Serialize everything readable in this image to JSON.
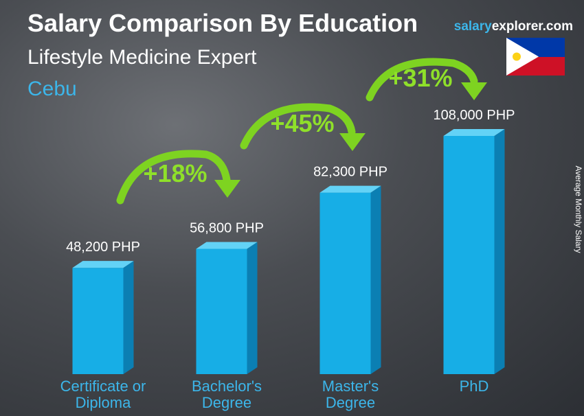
{
  "header": {
    "title": "Salary Comparison By Education",
    "subtitle": "Lifestyle Medicine Expert",
    "location": "Cebu",
    "brand_salary": "salary",
    "brand_explorer": "explorer.com"
  },
  "chart_data": {
    "type": "bar3d",
    "categories": [
      "Certificate or\nDiploma",
      "Bachelor's\nDegree",
      "Master's\nDegree",
      "PhD"
    ],
    "values": [
      48200,
      56800,
      82300,
      108000
    ],
    "value_labels": [
      "48,200 PHP",
      "56,800 PHP",
      "82,300 PHP",
      "108,000 PHP"
    ],
    "changes": [
      "+18%",
      "+45%",
      "+31%"
    ],
    "y_label": "Average Monthly Salary",
    "colors": {
      "front": "#17aee6",
      "side": "#0b7fb3",
      "top": "#63d2f6"
    }
  }
}
